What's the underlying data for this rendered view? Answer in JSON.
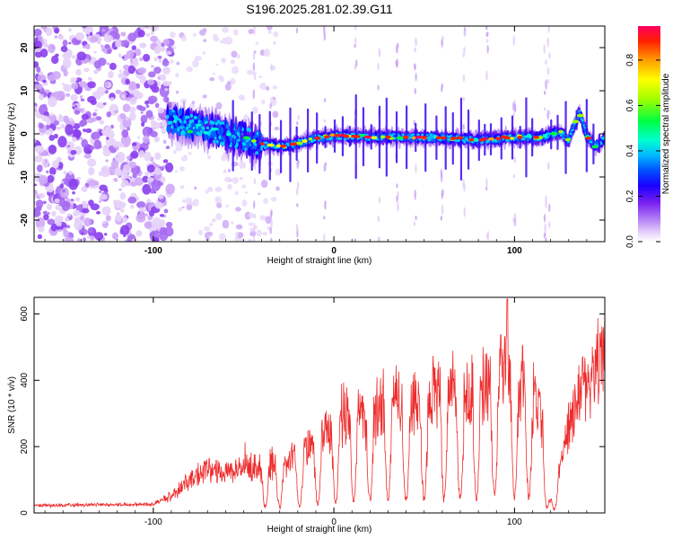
{
  "chart_data": [
    {
      "type": "heatmap",
      "title": "S196.2025.281.02.39.G11",
      "xlabel": "Height of straight line (km)",
      "ylabel": "Frequency (Hz)",
      "xlim": [
        -166,
        150
      ],
      "ylim": [
        -25,
        25
      ],
      "xticks": [
        -100,
        0,
        100
      ],
      "yticks": [
        -20,
        -10,
        0,
        10,
        20
      ],
      "colorbar": {
        "label": "Normalized spectral amplitude",
        "range": [
          0,
          0.95
        ],
        "ticks": [
          0.0,
          0.2,
          0.4,
          0.6,
          0.8
        ],
        "colormap": [
          "#e8d4fb",
          "#b586f5",
          "#7a1ff0",
          "#1a00ff",
          "#0050ff",
          "#00b8ff",
          "#00ffd0",
          "#00ff40",
          "#a0ff00",
          "#ffff00",
          "#ffa000",
          "#ff2000",
          "#ff0060"
        ]
      },
      "features": {
        "noise_region_x": [
          -166,
          -90
        ],
        "ridge": [
          {
            "x": -92,
            "f": 3.5
          },
          {
            "x": -80,
            "f": 2.0
          },
          {
            "x": -65,
            "f": 0.5
          },
          {
            "x": -50,
            "f": -1.0
          },
          {
            "x": -40,
            "f": -2.5
          },
          {
            "x": -30,
            "f": -3.0
          },
          {
            "x": -20,
            "f": -2.2
          },
          {
            "x": -10,
            "f": -1.0
          },
          {
            "x": 0,
            "f": -0.5
          },
          {
            "x": 20,
            "f": -0.7
          },
          {
            "x": 40,
            "f": -0.8
          },
          {
            "x": 60,
            "f": -0.9
          },
          {
            "x": 80,
            "f": -1.5
          },
          {
            "x": 100,
            "f": -0.8
          },
          {
            "x": 115,
            "f": -0.8
          },
          {
            "x": 125,
            "f": 0.5
          },
          {
            "x": 130,
            "f": -1.5
          },
          {
            "x": 136,
            "f": 5.0
          },
          {
            "x": 140,
            "f": -0.5
          },
          {
            "x": 145,
            "f": -3.0
          },
          {
            "x": 150,
            "f": -1.0
          }
        ]
      }
    },
    {
      "type": "line",
      "xlabel": "Height of straight line (km)",
      "ylabel": "SNR (10 * v/v)",
      "xlim": [
        -166,
        150
      ],
      "ylim": [
        0,
        650
      ],
      "xticks": [
        -100,
        0,
        100
      ],
      "yticks": [
        0,
        200,
        400,
        600
      ],
      "color": "#ee2b2b",
      "envelope": [
        {
          "x": -166,
          "y": 25
        },
        {
          "x": -100,
          "y": 30
        },
        {
          "x": -90,
          "y": 60
        },
        {
          "x": -80,
          "y": 110
        },
        {
          "x": -70,
          "y": 150
        },
        {
          "x": -60,
          "y": 140
        },
        {
          "x": -50,
          "y": 150
        },
        {
          "x": -40,
          "y": 160
        },
        {
          "x": -30,
          "y": 165
        },
        {
          "x": -20,
          "y": 190
        },
        {
          "x": -10,
          "y": 240
        },
        {
          "x": 0,
          "y": 280
        },
        {
          "x": 10,
          "y": 340
        },
        {
          "x": 20,
          "y": 330
        },
        {
          "x": 30,
          "y": 380
        },
        {
          "x": 40,
          "y": 350
        },
        {
          "x": 50,
          "y": 380
        },
        {
          "x": 60,
          "y": 440
        },
        {
          "x": 70,
          "y": 400
        },
        {
          "x": 80,
          "y": 410
        },
        {
          "x": 90,
          "y": 440
        },
        {
          "x": 95,
          "y": 500
        },
        {
          "x": 100,
          "y": 450
        },
        {
          "x": 110,
          "y": 420
        },
        {
          "x": 115,
          "y": 330
        },
        {
          "x": 120,
          "y": 60
        },
        {
          "x": 125,
          "y": 150
        },
        {
          "x": 130,
          "y": 300
        },
        {
          "x": 135,
          "y": 400
        },
        {
          "x": 140,
          "y": 470
        },
        {
          "x": 145,
          "y": 500
        },
        {
          "x": 150,
          "y": 520
        }
      ],
      "dips_x": [
        -38,
        -30,
        -19,
        -9,
        1,
        11,
        20,
        30,
        40,
        50,
        61,
        70,
        79,
        89,
        100,
        108,
        118,
        122
      ]
    }
  ]
}
